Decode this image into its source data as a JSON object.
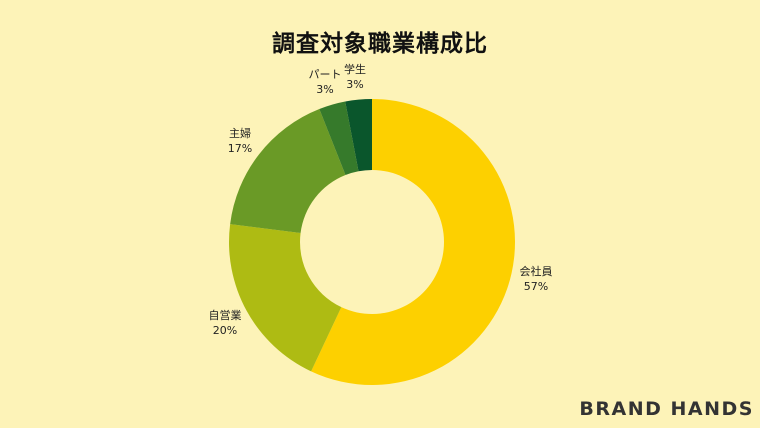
{
  "chart_data": {
    "type": "pie",
    "variant": "donut",
    "title": "調査対象職業構成比",
    "slices": [
      {
        "label": "会社員",
        "value": 57,
        "value_label": "57%",
        "color": "#fdd000"
      },
      {
        "label": "自営業",
        "value": 20,
        "value_label": "20%",
        "color": "#aebb13"
      },
      {
        "label": "主婦",
        "value": 17,
        "value_label": "17%",
        "color": "#6a9a26"
      },
      {
        "label": "パート",
        "value": 3,
        "value_label": "3%",
        "color": "#367a2b"
      },
      {
        "label": "学生",
        "value": 3,
        "value_label": "3%",
        "color": "#0a562c"
      }
    ]
  },
  "brand": "BRAND HANDS"
}
